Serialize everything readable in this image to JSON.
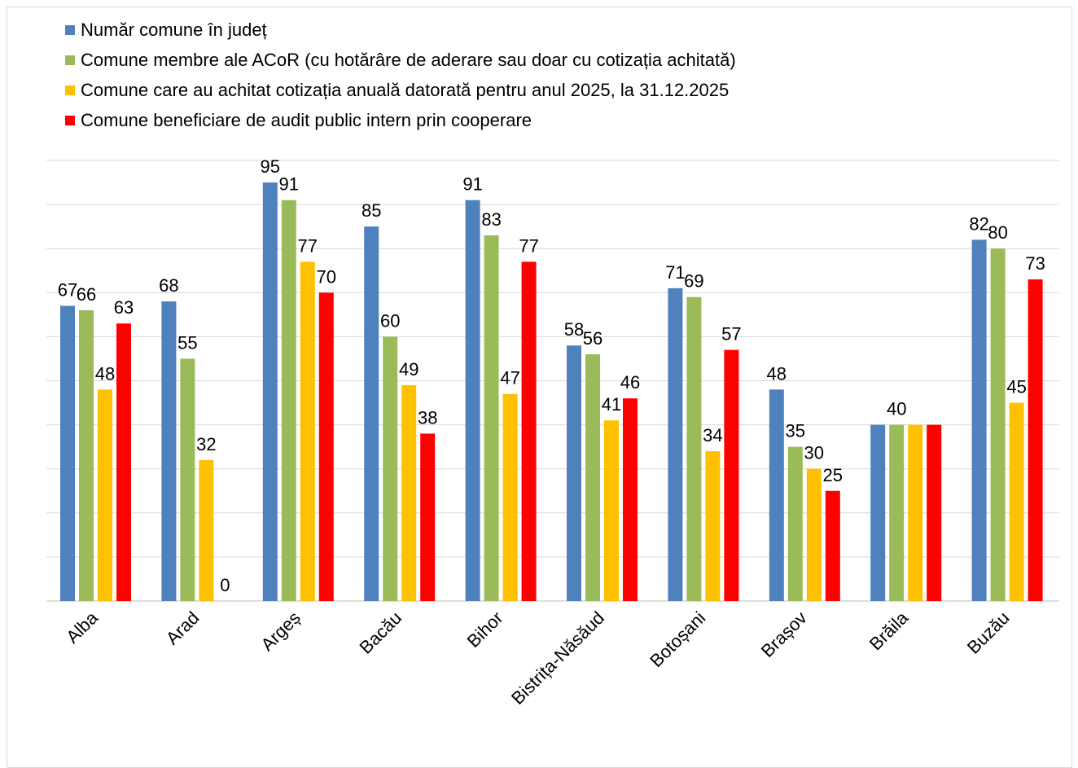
{
  "chart_data": {
    "type": "bar",
    "title": "",
    "xlabel": "",
    "ylabel": "",
    "ylim": [
      0,
      100
    ],
    "grid": true,
    "legend_position": "top-left",
    "categories": [
      "Alba",
      "Arad",
      "Argeș",
      "Bacău",
      "Bihor",
      "Bistrița-Năsăud",
      "Botoșani",
      "Brașov",
      "Brăila",
      "Buzău"
    ],
    "series": [
      {
        "name": "Număr comune în județ",
        "color": "#4f81bd",
        "values": [
          67,
          68,
          95,
          85,
          91,
          58,
          71,
          48,
          40,
          82
        ]
      },
      {
        "name": "Comune membre ale ACoR (cu hotărâre de aderare sau doar cu cotizația achitată)",
        "color": "#9bbb59",
        "values": [
          66,
          55,
          91,
          60,
          83,
          56,
          69,
          35,
          40,
          80
        ]
      },
      {
        "name": "Comune care au achitat cotizația anuală datorată pentru anul 2025, la 31.12.2025",
        "color": "#ffc000",
        "values": [
          48,
          32,
          77,
          49,
          47,
          41,
          34,
          30,
          40,
          45
        ]
      },
      {
        "name": "Comune beneficiare de audit public intern prin cooperare",
        "color": "#ff0000",
        "values": [
          63,
          0,
          70,
          38,
          77,
          46,
          57,
          25,
          40,
          73
        ]
      }
    ],
    "data_labels": [
      [
        "67",
        "68",
        "95",
        "85",
        "91",
        "58",
        "71",
        "48",
        "",
        "82"
      ],
      [
        "66",
        "55",
        "91",
        "60",
        "83",
        "56",
        "69",
        "35",
        "40",
        "80"
      ],
      [
        "48",
        "32",
        "77",
        "49",
        "47",
        "41",
        "34",
        "30",
        "",
        "45"
      ],
      [
        "63",
        "0",
        "70",
        "38",
        "77",
        "46",
        "57",
        "25",
        "",
        "73"
      ]
    ]
  }
}
